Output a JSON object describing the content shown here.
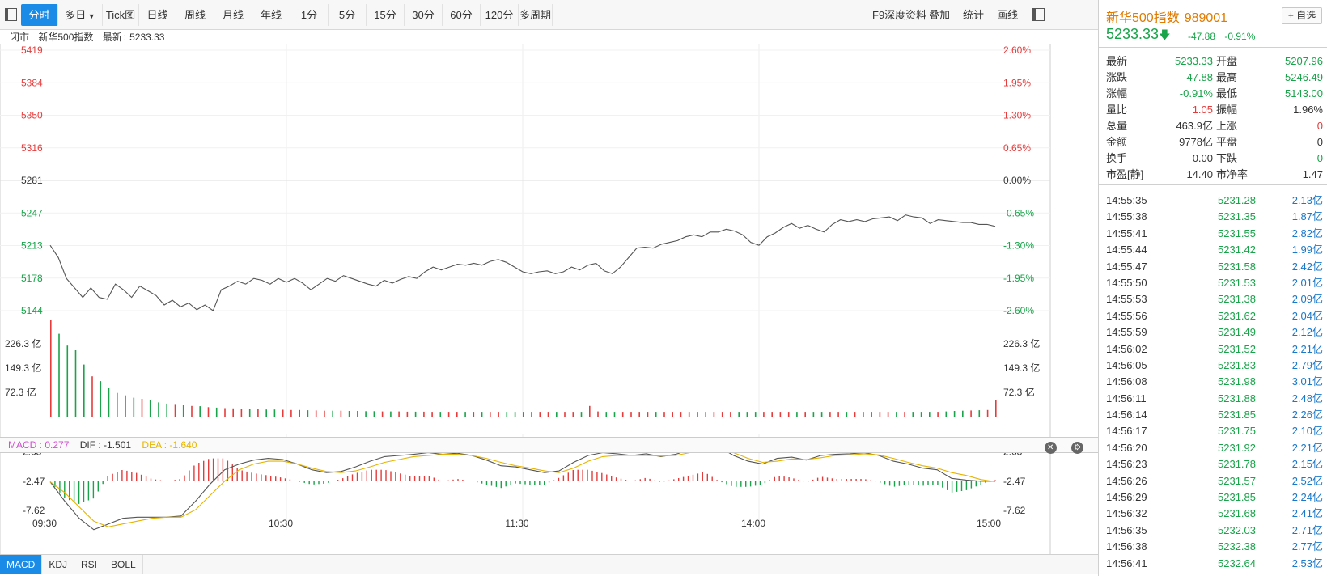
{
  "toolbar": {
    "tabs": [
      "分时",
      "多日",
      "Tick图",
      "日线",
      "周线",
      "月线",
      "年线",
      "1分",
      "5分",
      "15分",
      "30分",
      "60分",
      "120分",
      "多周期"
    ],
    "active_tab": "分时",
    "right_items": [
      "F9深度资料",
      "叠加",
      "统计",
      "画线"
    ]
  },
  "status": {
    "state": "闭市",
    "name": "新华500指数",
    "latest_label": "最新",
    "latest_value": "5233.33"
  },
  "chart_data": {
    "type": "line",
    "title": "",
    "x_ticks": [
      "09:30",
      "10:30",
      "11:30",
      "14:00",
      "15:00"
    ],
    "price_axis_left": [
      "5419",
      "5384",
      "5350",
      "5316",
      "5281",
      "5247",
      "5213",
      "5178",
      "5144"
    ],
    "price_axis_right": [
      "2.60%",
      "1.95%",
      "1.30%",
      "0.65%",
      "0.00%",
      "-0.65%",
      "-1.30%",
      "-1.95%",
      "-2.60%"
    ],
    "prev_close": 5281,
    "ylim": [
      5144,
      5419
    ],
    "price_series": {
      "name": "价格",
      "values": [
        5213,
        5200,
        5178,
        5168,
        5158,
        5168,
        5158,
        5156,
        5172,
        5166,
        5158,
        5170,
        5165,
        5160,
        5150,
        5155,
        5148,
        5152,
        5145,
        5150,
        5144,
        5166,
        5170,
        5175,
        5172,
        5178,
        5176,
        5172,
        5178,
        5174,
        5178,
        5173,
        5166,
        5172,
        5178,
        5175,
        5181,
        5178,
        5175,
        5172,
        5170,
        5176,
        5173,
        5177,
        5180,
        5178,
        5185,
        5190,
        5187,
        5190,
        5193,
        5192,
        5194,
        5192,
        5196,
        5198,
        5195,
        5190,
        5185,
        5183,
        5185,
        5186,
        5183,
        5185,
        5190,
        5187,
        5192,
        5194,
        5186,
        5183,
        5190,
        5200,
        5210,
        5211,
        5210,
        5214,
        5216,
        5218,
        5222,
        5224,
        5222,
        5227,
        5227,
        5230,
        5228,
        5224,
        5216,
        5213,
        5222,
        5226,
        5232,
        5236,
        5231,
        5234,
        5230,
        5227,
        5235,
        5240,
        5238,
        5240,
        5238,
        5241,
        5242,
        5243,
        5239,
        5245,
        5243,
        5242,
        5236,
        5240,
        5239,
        5238,
        5237,
        5237,
        5235,
        5235,
        5233
      ]
    },
    "volume_axis": [
      "226.3 亿",
      "149.3 亿",
      "72.3 亿"
    ],
    "volume_series": [
      410,
      350,
      300,
      280,
      220,
      170,
      150,
      120,
      100,
      90,
      80,
      75,
      70,
      60,
      55,
      50,
      48,
      45,
      44,
      40,
      38,
      36,
      35,
      34,
      33,
      32,
      30,
      30,
      29,
      28,
      28,
      27,
      26,
      25,
      25,
      25,
      24,
      24,
      23,
      23,
      22,
      22,
      22,
      21,
      21,
      21,
      20,
      20,
      20,
      20,
      20,
      20,
      20,
      20,
      20,
      20,
      20,
      20,
      20,
      20,
      20,
      20,
      20,
      20,
      20,
      45,
      22,
      20,
      20,
      20,
      20,
      20,
      20,
      20,
      20,
      20,
      20,
      20,
      20,
      20,
      20,
      20,
      20,
      20,
      20,
      20,
      20,
      20,
      20,
      20,
      20,
      20,
      20,
      20,
      20,
      20,
      20,
      20,
      20,
      20,
      20,
      20,
      20,
      20,
      20,
      20,
      20,
      20,
      22,
      24,
      25,
      26,
      27,
      28,
      70
    ],
    "macd_axis": [
      "2.68",
      "-2.47",
      "-7.62"
    ],
    "macd_ylim": [
      -11,
      6
    ],
    "dif_series": [
      -1.6,
      -5,
      -8,
      -10,
      -9,
      -8,
      -7.8,
      -7.8,
      -7.8,
      -7.6,
      -5,
      -2,
      0.5,
      1.5,
      2.2,
      2.5,
      2.3,
      1.5,
      0.5,
      0,
      0.2,
      1,
      2,
      2.8,
      3,
      3.2,
      3.5,
      3.2,
      3.4,
      3,
      2.2,
      1.2,
      1,
      0.5,
      0,
      0.3,
      1.8,
      3,
      3.5,
      3.3,
      3,
      3.3,
      2.8,
      3.2,
      4,
      5,
      4.5,
      3,
      2,
      1.5,
      2.5,
      2.7,
      2.2,
      3,
      3.2,
      3.3,
      3.5,
      3,
      2,
      1.5,
      0.8,
      0.5,
      -1,
      -1.3,
      -1.5,
      -1.5
    ],
    "dea_series": [
      -1.6,
      -3.5,
      -6,
      -8.5,
      -9.5,
      -9,
      -8.5,
      -8,
      -7.8,
      -7.8,
      -6.5,
      -4,
      -1.5,
      0.5,
      1.5,
      2,
      2,
      1.5,
      0.8,
      0.2,
      0,
      0.3,
      1,
      1.8,
      2.3,
      2.8,
      3,
      3.2,
      3.2,
      3,
      2.5,
      1.8,
      1.2,
      0.8,
      0.3,
      0,
      0.8,
      2,
      2.8,
      3,
      3,
      3,
      2.9,
      3,
      3.5,
      4.2,
      4.5,
      3.5,
      2.5,
      1.8,
      2,
      2.4,
      2.3,
      2.6,
      3,
      3.1,
      3.3,
      3.1,
      2.5,
      1.8,
      1.2,
      0.8,
      0,
      -0.5,
      -1.2,
      -1.6
    ],
    "macd_readout": {
      "MACD": "0.277",
      "DIF": "-1.501",
      "DEA": "-1.640"
    }
  },
  "indicator_labels": {
    "macd": "MACD : 0.277",
    "dif": "DIF : -1.501",
    "dea": "DEA : -1.640"
  },
  "bottom_tabs": [
    "MACD",
    "KDJ",
    "RSI",
    "BOLL"
  ],
  "quote": {
    "name": "新华500指数",
    "code": "989001",
    "fav_label": "+ 自选",
    "price": "5233.33",
    "change": "-47.88",
    "change_pct": "-0.91%",
    "rows": [
      {
        "l1": "最新",
        "v1": "5233.33",
        "c1": "green",
        "l2": "开盘",
        "v2": "5207.96",
        "c2": "green"
      },
      {
        "l1": "涨跌",
        "v1": "-47.88",
        "c1": "green",
        "l2": "最高",
        "v2": "5246.49",
        "c2": "green"
      },
      {
        "l1": "涨幅",
        "v1": "-0.91%",
        "c1": "green",
        "l2": "最低",
        "v2": "5143.00",
        "c2": "green"
      },
      {
        "l1": "量比",
        "v1": "1.05",
        "c1": "red",
        "l2": "振幅",
        "v2": "1.96%",
        "c2": "dark"
      },
      {
        "l1": "总量",
        "v1": "463.9亿",
        "c1": "dark",
        "l2": "上涨",
        "v2": "0",
        "c2": "red"
      },
      {
        "l1": "金额",
        "v1": "9778亿",
        "c1": "dark",
        "l2": "平盘",
        "v2": "0",
        "c2": "dark"
      },
      {
        "l1": "换手",
        "v1": "0.00",
        "c1": "dark",
        "l2": "下跌",
        "v2": "0",
        "c2": "green"
      },
      {
        "l1": "市盈[静]",
        "v1": "14.40",
        "c1": "dark",
        "l2": "市净率",
        "v2": "1.47",
        "c2": "dark"
      }
    ]
  },
  "ticks": [
    {
      "t": "14:55:35",
      "p": "5231.28",
      "a": "2.13亿"
    },
    {
      "t": "14:55:38",
      "p": "5231.35",
      "a": "1.87亿"
    },
    {
      "t": "14:55:41",
      "p": "5231.55",
      "a": "2.82亿"
    },
    {
      "t": "14:55:44",
      "p": "5231.42",
      "a": "1.99亿"
    },
    {
      "t": "14:55:47",
      "p": "5231.58",
      "a": "2.42亿"
    },
    {
      "t": "14:55:50",
      "p": "5231.53",
      "a": "2.01亿"
    },
    {
      "t": "14:55:53",
      "p": "5231.38",
      "a": "2.09亿"
    },
    {
      "t": "14:55:56",
      "p": "5231.62",
      "a": "2.04亿"
    },
    {
      "t": "14:55:59",
      "p": "5231.49",
      "a": "2.12亿"
    },
    {
      "t": "14:56:02",
      "p": "5231.52",
      "a": "2.21亿"
    },
    {
      "t": "14:56:05",
      "p": "5231.83",
      "a": "2.79亿"
    },
    {
      "t": "14:56:08",
      "p": "5231.98",
      "a": "3.01亿"
    },
    {
      "t": "14:56:11",
      "p": "5231.88",
      "a": "2.48亿"
    },
    {
      "t": "14:56:14",
      "p": "5231.85",
      "a": "2.26亿"
    },
    {
      "t": "14:56:17",
      "p": "5231.75",
      "a": "2.10亿"
    },
    {
      "t": "14:56:20",
      "p": "5231.92",
      "a": "2.21亿"
    },
    {
      "t": "14:56:23",
      "p": "5231.78",
      "a": "2.15亿"
    },
    {
      "t": "14:56:26",
      "p": "5231.57",
      "a": "2.52亿"
    },
    {
      "t": "14:56:29",
      "p": "5231.85",
      "a": "2.24亿"
    },
    {
      "t": "14:56:32",
      "p": "5231.68",
      "a": "2.41亿"
    },
    {
      "t": "14:56:35",
      "p": "5232.03",
      "a": "2.71亿"
    },
    {
      "t": "14:56:38",
      "p": "5232.38",
      "a": "2.77亿"
    },
    {
      "t": "14:56:41",
      "p": "5232.64",
      "a": "2.53亿"
    }
  ],
  "colors": {
    "accent": "#1a8be7",
    "up": "#e53b3b",
    "down": "#19a34a",
    "title": "#e07b00",
    "price_line": "#555555",
    "dea": "#e6b400",
    "macd_label": "#d04fd0"
  }
}
